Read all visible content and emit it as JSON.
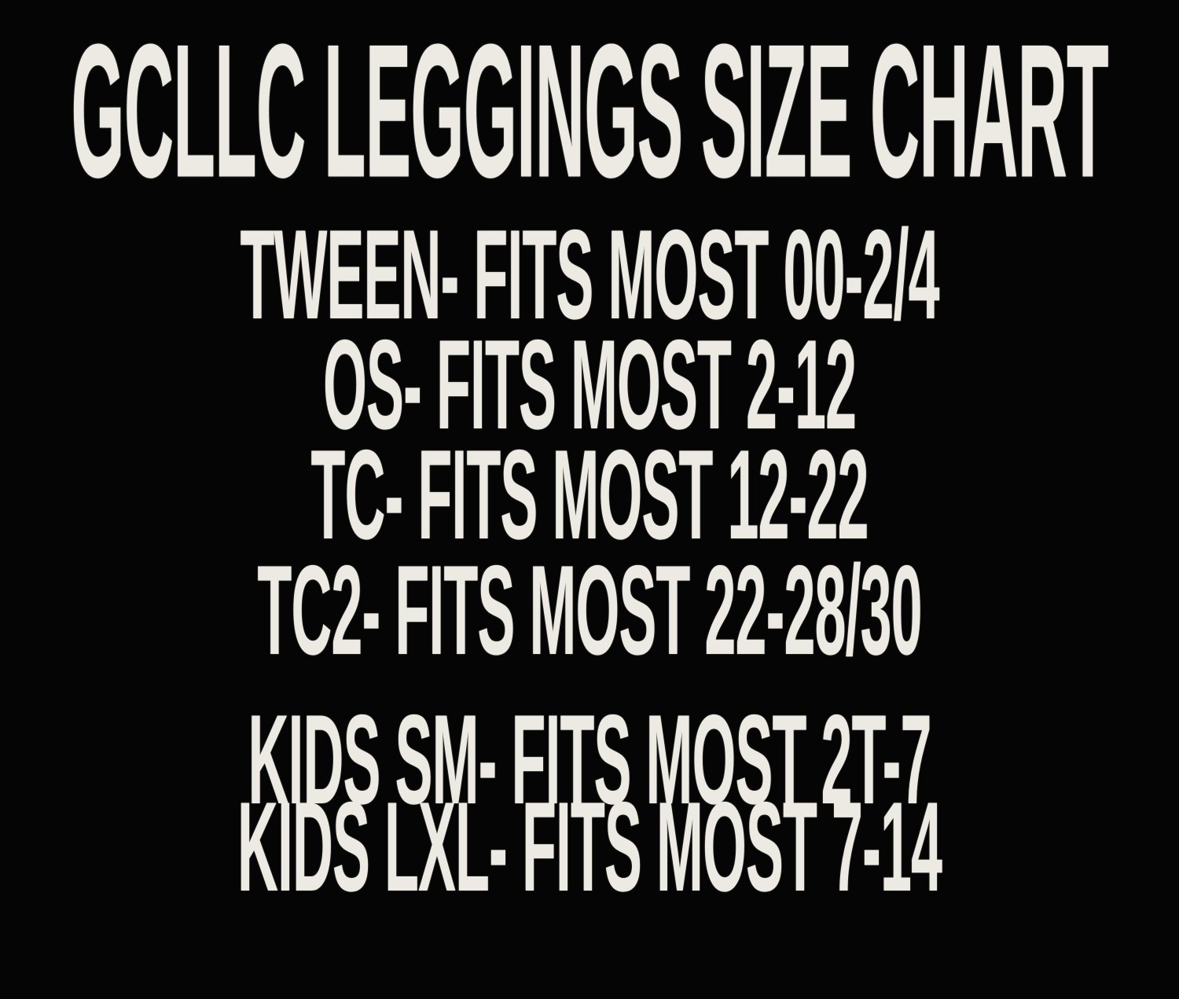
{
  "poster": {
    "background_color": "#050505",
    "text_color": "#edeae4",
    "title": "GCLLC LEGGINGS SIZE CHART",
    "lines": [
      {
        "size": "TWEEN",
        "fits": "00-2/4",
        "text": "TWEEN- FITS MOST 00-2/4"
      },
      {
        "size": "OS",
        "fits": "2-12",
        "text": "OS- FITS MOST 2-12"
      },
      {
        "size": "TC",
        "fits": "12-22",
        "text": "TC- FITS MOST 12-22"
      },
      {
        "size": "TC2",
        "fits": "22-28/30",
        "text": "TC2- FITS MOST 22-28/30"
      },
      {
        "size": "KIDS SM",
        "fits": "2T-7",
        "text": "KIDS SM- FITS MOST 2T-7"
      },
      {
        "size": "KIDS LXL",
        "fits": "7-14",
        "text": "KIDS LXL- FITS MOST 7-14"
      }
    ]
  }
}
